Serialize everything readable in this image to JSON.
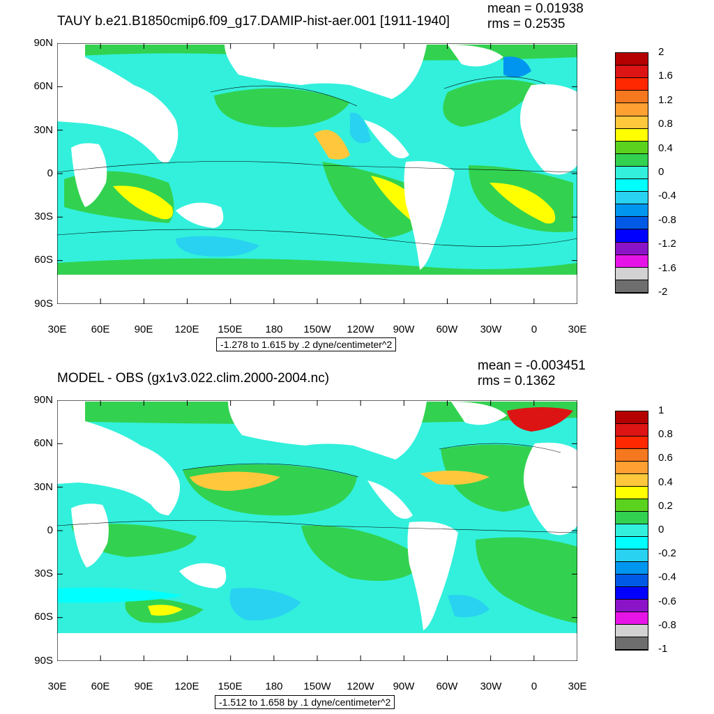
{
  "maps": [
    {
      "title": "TAUY b.e21.B1850cmip6.f09_g17.DAMIP-hist-aer.001 [1911-1940]",
      "mean": "mean = 0.01938",
      "rms": "rms = 0.2535",
      "range_text": "-1.278 to 1.615 by .2 dyne/centimeter^2",
      "y_ticks": [
        "90N",
        "60N",
        "30N",
        "0",
        "30S",
        "60S",
        "90S"
      ],
      "x_ticks": [
        "30E",
        "60E",
        "90E",
        "120E",
        "150E",
        "180",
        "150W",
        "120W",
        "90W",
        "60W",
        "30W",
        "0",
        "30E"
      ],
      "colorbar_labels": [
        "2",
        "1.6",
        "1.2",
        "0.8",
        "0.4",
        "0",
        "-0.4",
        "-0.8",
        "-1.2",
        "-1.6",
        "-2"
      ],
      "colorbar_colors": [
        "#b40000",
        "#dc1414",
        "#ff2800",
        "#f5781e",
        "#ffa032",
        "#ffc83c",
        "#ffff00",
        "#5ad21e",
        "#32d250",
        "#32f0dc",
        "#00ffff",
        "#28d2f0",
        "#0096f0",
        "#005ae6",
        "#0000ff",
        "#8c14c8",
        "#e614e6",
        "#d2d2d2",
        "#6e6e6e"
      ]
    },
    {
      "title": "MODEL - OBS (gx1v3.022.clim.2000-2004.nc)",
      "mean": "mean = -0.003451",
      "rms": "rms = 0.1362",
      "range_text": "-1.512 to 1.658 by .1 dyne/centimeter^2",
      "y_ticks": [
        "90N",
        "60N",
        "30N",
        "0",
        "30S",
        "60S",
        "90S"
      ],
      "x_ticks": [
        "30E",
        "60E",
        "90E",
        "120E",
        "150E",
        "180",
        "150W",
        "120W",
        "90W",
        "60W",
        "30W",
        "0",
        "30E"
      ],
      "colorbar_labels": [
        "1",
        "0.8",
        "0.6",
        "0.4",
        "0.2",
        "0",
        "-0.2",
        "-0.4",
        "-0.6",
        "-0.8",
        "-1"
      ],
      "colorbar_colors": [
        "#b40000",
        "#dc1414",
        "#ff2800",
        "#f5781e",
        "#ffa032",
        "#ffc83c",
        "#ffff00",
        "#5ad21e",
        "#32d250",
        "#32f0dc",
        "#00ffff",
        "#28d2f0",
        "#0096f0",
        "#005ae6",
        "#0000ff",
        "#8c14c8",
        "#e614e6",
        "#d2d2d2",
        "#6e6e6e"
      ]
    }
  ]
}
